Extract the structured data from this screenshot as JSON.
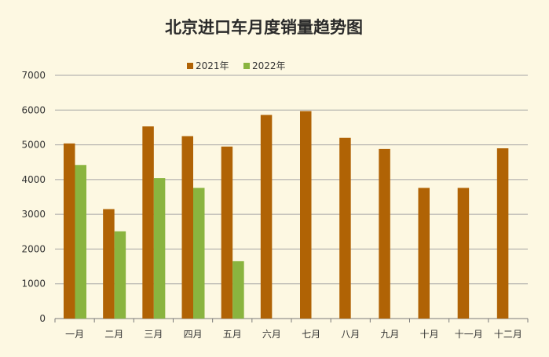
{
  "chart_data": {
    "type": "bar",
    "title": "北京进口车月度销量趋势图",
    "xlabel": "",
    "ylabel": "",
    "categories": [
      "一月",
      "二月",
      "三月",
      "四月",
      "五月",
      "六月",
      "七月",
      "八月",
      "九月",
      "十月",
      "十一月",
      "十二月"
    ],
    "series": [
      {
        "name": "2021年",
        "color": "#b06305",
        "values": [
          5040,
          3150,
          5530,
          5250,
          4950,
          5860,
          5970,
          5200,
          4880,
          3760,
          3760,
          4900
        ]
      },
      {
        "name": "2022年",
        "color": "#8ab43f",
        "values": [
          4420,
          2510,
          4040,
          3760,
          1650,
          null,
          null,
          null,
          null,
          null,
          null,
          null
        ]
      }
    ],
    "ylim": [
      0,
      7000
    ],
    "yticks": [
      0,
      1000,
      2000,
      3000,
      4000,
      5000,
      6000,
      7000
    ],
    "grid": true,
    "legend_position": "top"
  }
}
